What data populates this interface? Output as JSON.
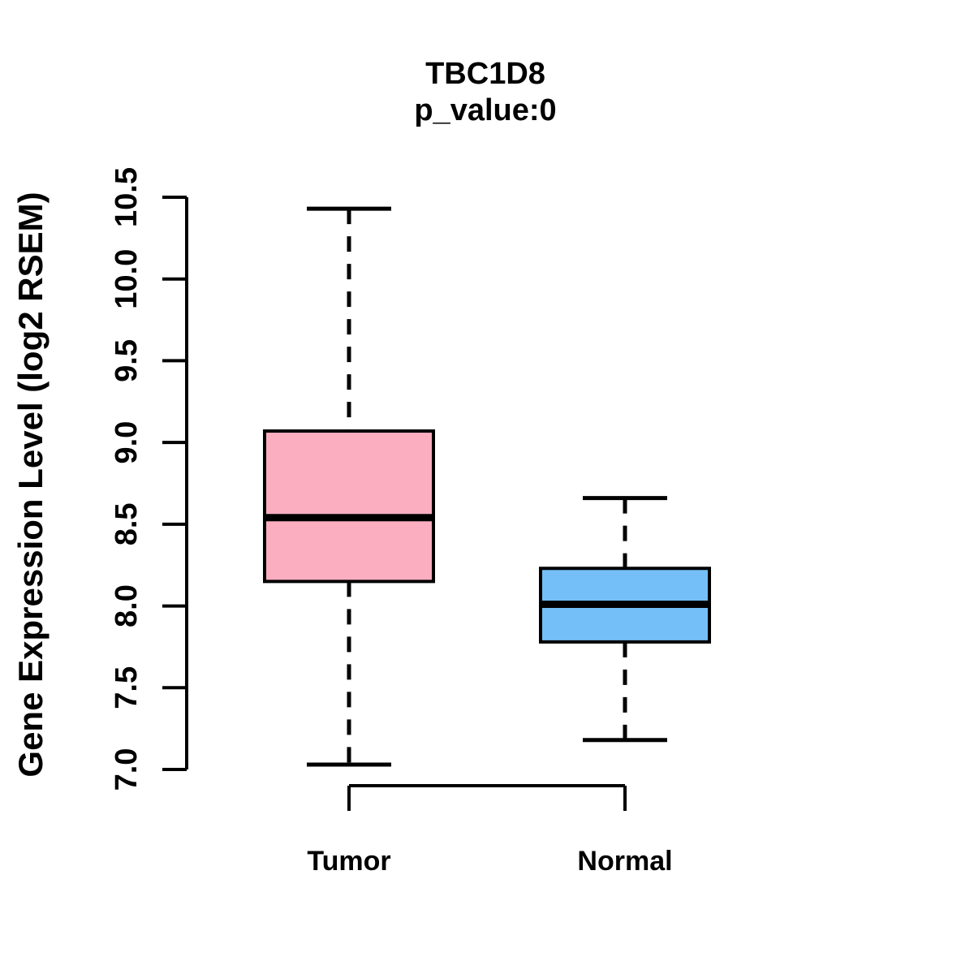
{
  "title": "TBC1D8",
  "subtitle": "p_value:0",
  "ylabel": "Gene Expression Level (log2 RSEM)",
  "colors": {
    "tumor_fill": "#FCAEC1",
    "normal_fill": "#74BFF7",
    "stroke": "#000000",
    "background": "#FFFFFF"
  },
  "chart_data": {
    "type": "boxplot",
    "title": "TBC1D8",
    "subtitle": "p_value:0",
    "ylabel": "Gene Expression Level (log2 RSEM)",
    "xlabel": "",
    "ylim": [
      7.0,
      10.5
    ],
    "yticks": [
      7.0,
      7.5,
      8.0,
      8.5,
      9.0,
      9.5,
      10.0,
      10.5
    ],
    "ytick_labels": [
      "7.0",
      "7.5",
      "8.0",
      "8.5",
      "9.0",
      "9.5",
      "10.0",
      "10.5"
    ],
    "categories": [
      "Tumor",
      "Normal"
    ],
    "grid": false,
    "legend_position": "none",
    "series": [
      {
        "name": "Tumor",
        "whisker_low": 7.03,
        "q1": 8.15,
        "median": 8.54,
        "q3": 9.07,
        "whisker_high": 10.43,
        "fill": "#FCAEC1"
      },
      {
        "name": "Normal",
        "whisker_low": 7.18,
        "q1": 7.78,
        "median": 8.01,
        "q3": 8.23,
        "whisker_high": 8.66,
        "fill": "#74BFF7"
      }
    ]
  }
}
